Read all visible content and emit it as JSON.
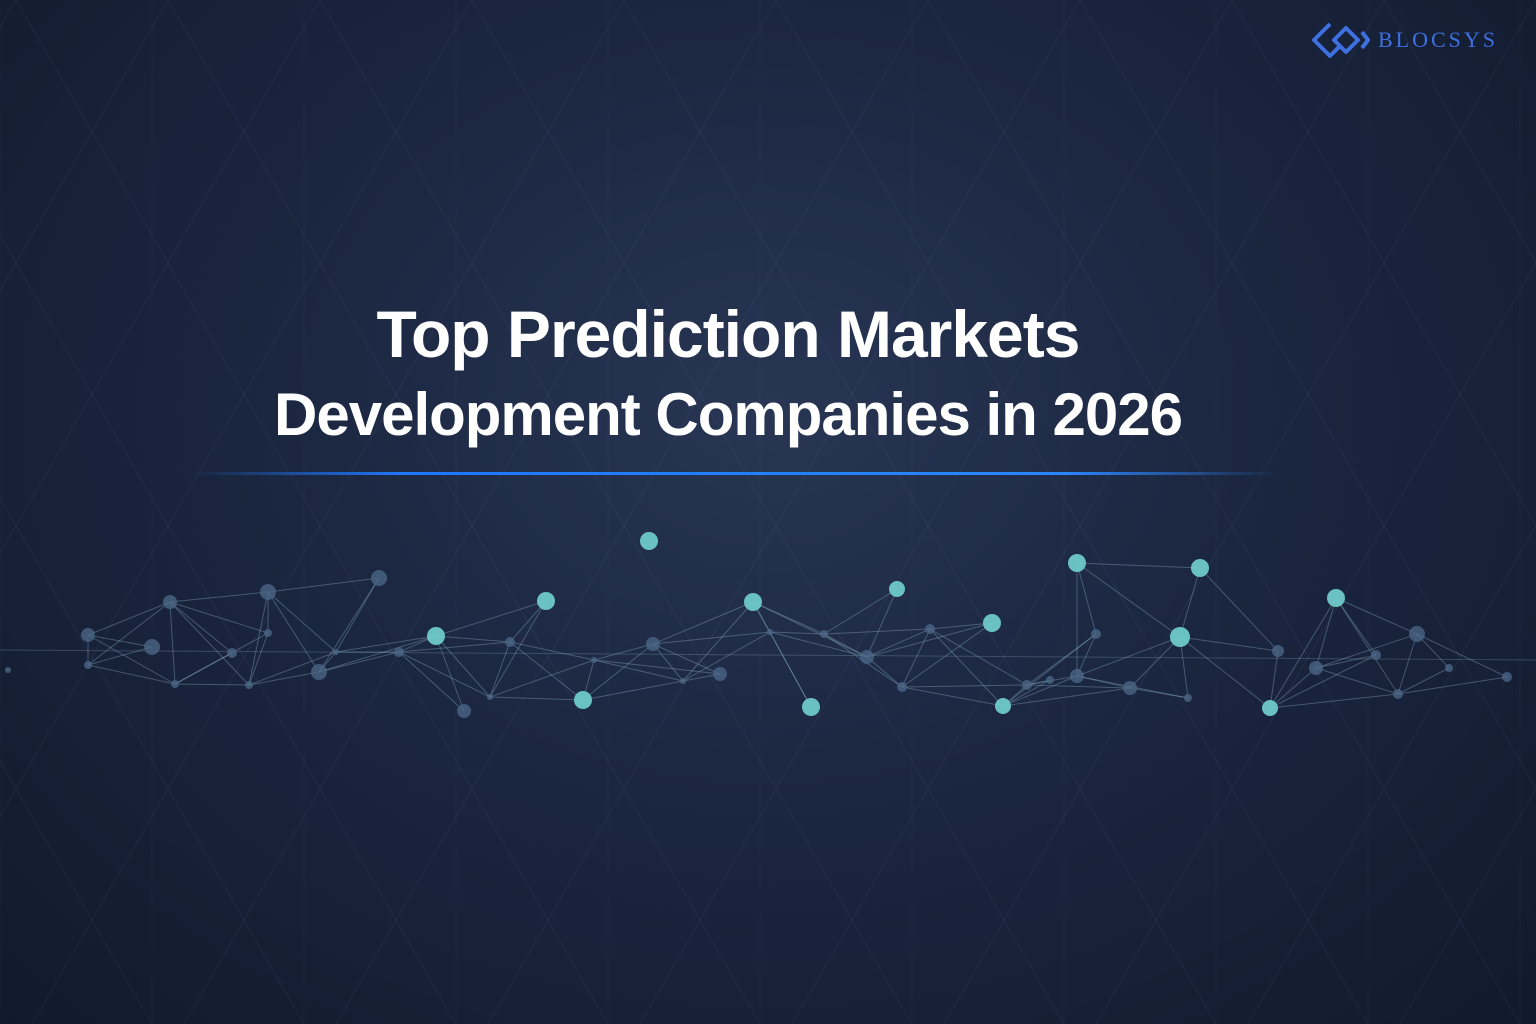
{
  "brand": {
    "name": "BLOCSYS",
    "color": "#3f6fe0"
  },
  "headline": {
    "line1": "Top Prediction Markets",
    "line2": "Development Companies in 2026"
  },
  "colors": {
    "accent_rule": "#1e78ff",
    "node": "#6fc9c9",
    "background": "#1b2640"
  },
  "decoration": {
    "background_pattern": "triangle-grid",
    "illustration": "network-graph"
  }
}
